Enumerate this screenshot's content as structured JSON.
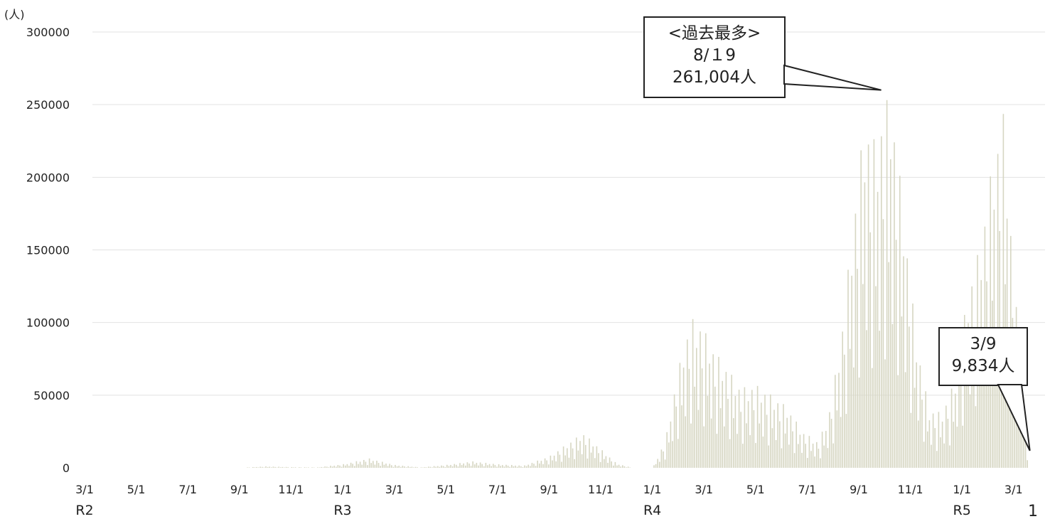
{
  "chart_data": {
    "type": "bar",
    "unit_label": "(人)",
    "y_ticks": [
      "300000",
      "250000",
      "200000",
      "150000",
      "100000",
      "50000",
      "0"
    ],
    "ylim": [
      0,
      300000
    ],
    "grid": true,
    "x_ticks": [
      "3/1",
      "5/1",
      "7/1",
      "9/1",
      "11/1",
      "1/1",
      "3/1",
      "5/1",
      "7/1",
      "9/1",
      "11/1",
      "1/1",
      "3/1",
      "5/1",
      "7/1",
      "9/1",
      "11/1",
      "1/1",
      "3/1"
    ],
    "eras": [
      {
        "label": "R2",
        "tick_index": 0
      },
      {
        "label": "R3",
        "tick_index": 5
      },
      {
        "label": "R4",
        "tick_index": 11
      },
      {
        "label": "R5",
        "tick_index": 17
      }
    ],
    "peak": {
      "tick_index": 15.6,
      "value": 261004,
      "lines": [
        "<過去最多>",
        "8/１9",
        "261,004人"
      ]
    },
    "latest": {
      "tick_index": 18.26,
      "value": 9834,
      "lines": [
        "3/9",
        "9,834人"
      ]
    },
    "series": [
      {
        "color": "#d6d6c2",
        "points": [
          [
            3.0,
            0
          ],
          [
            3.5,
            1000
          ],
          [
            4.0,
            500
          ],
          [
            4.5,
            300
          ],
          [
            5.0,
            2500
          ],
          [
            5.5,
            6500
          ],
          [
            6.0,
            2000
          ],
          [
            6.5,
            300
          ],
          [
            7.0,
            2000
          ],
          [
            7.5,
            4500
          ],
          [
            8.0,
            2500
          ],
          [
            8.5,
            1500
          ],
          [
            9.0,
            8000
          ],
          [
            9.4,
            18000
          ],
          [
            9.65,
            24000
          ],
          [
            9.9,
            16000
          ],
          [
            10.3,
            3000
          ],
          [
            10.6,
            0
          ],
          [
            11.0,
            0
          ],
          [
            11.25,
            20000
          ],
          [
            11.45,
            60000
          ],
          [
            11.6,
            85000
          ],
          [
            11.75,
            103000
          ],
          [
            11.95,
            98000
          ],
          [
            12.2,
            80000
          ],
          [
            12.45,
            68000
          ],
          [
            12.7,
            55000
          ],
          [
            13.0,
            57000
          ],
          [
            13.3,
            50000
          ],
          [
            13.6,
            42000
          ],
          [
            13.9,
            25000
          ],
          [
            14.2,
            18000
          ],
          [
            14.4,
            35000
          ],
          [
            14.65,
            90000
          ],
          [
            14.85,
            160000
          ],
          [
            15.1,
            240000
          ],
          [
            15.3,
            225000
          ],
          [
            15.6,
            261004
          ],
          [
            15.85,
            180000
          ],
          [
            16.1,
            90000
          ],
          [
            16.35,
            40000
          ],
          [
            16.6,
            38000
          ],
          [
            16.85,
            60000
          ],
          [
            17.1,
            120000
          ],
          [
            17.35,
            155000
          ],
          [
            17.6,
            215000
          ],
          [
            17.8,
            245000
          ],
          [
            18.0,
            130000
          ],
          [
            18.15,
            60000
          ],
          [
            18.25,
            30000
          ],
          [
            18.26,
            9834
          ]
        ]
      }
    ],
    "page_number": "1"
  }
}
